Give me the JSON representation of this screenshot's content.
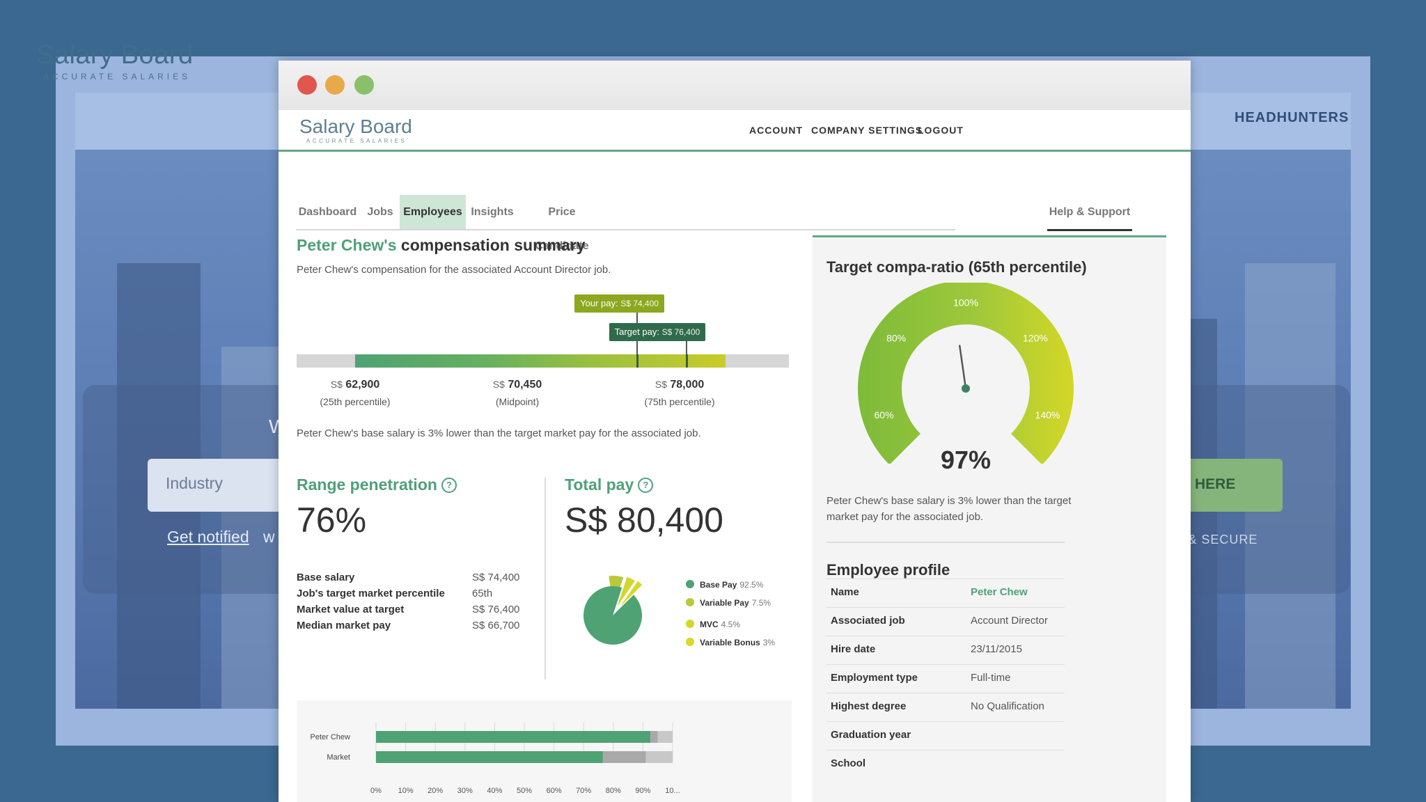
{
  "background_site": {
    "logo_word": "Salary Board",
    "logo_tagline": "ACCURATE SALARIES",
    "nav_right": "HEADHUNTERS",
    "industry_placeholder": "Industry",
    "cta_label": "HERE",
    "notified_link": "Get notified",
    "notified_rest": "w",
    "secure_text": "L & SECURE",
    "headline_fragment": "W"
  },
  "app": {
    "logo_word": "Salary Board",
    "logo_tagline": "ACCURATE SALARIES",
    "top_nav": [
      "ACCOUNT",
      "COMPANY SETTINGS",
      "LOGOUT"
    ],
    "tabs": [
      {
        "label": "Dashboard",
        "active": false
      },
      {
        "label": "Jobs",
        "active": false
      },
      {
        "label": "Employees",
        "active": true
      },
      {
        "label": "Insights",
        "active": false
      },
      {
        "label": "Price Candidate",
        "active": false
      }
    ],
    "help_tab": "Help & Support"
  },
  "compensation": {
    "title_name": "Peter Chew's",
    "title_rest": "compensation summary",
    "subtitle": "Peter Chew's compensation for the associated Account Director job.",
    "your_pay_label": "Your pay:",
    "your_pay_value": "S$ 74,400",
    "target_pay_label": "Target pay:",
    "target_pay_value": "S$ 76,400",
    "range_start": 62900,
    "range_end": 78000,
    "your_pay": 74400,
    "target_pay": 76400,
    "percentiles": [
      {
        "currency": "S$",
        "value": "62,900",
        "label": "(25th percentile)"
      },
      {
        "currency": "S$",
        "value": "70,450",
        "label": "(Midpoint)"
      },
      {
        "currency": "S$",
        "value": "78,000",
        "label": "(75th percentile)"
      }
    ],
    "note": "Peter Chew's base salary is 3% lower than the target market pay for the associated job."
  },
  "range_penetration": {
    "title": "Range penetration",
    "value": "76%"
  },
  "total_pay": {
    "title": "Total pay",
    "value": "S$ 80,400"
  },
  "stats": [
    {
      "label": "Base salary",
      "value": "S$ 74,400"
    },
    {
      "label": "Job's target market percentile",
      "value": "65th"
    },
    {
      "label": "Market value at target",
      "value": "S$ 76,400"
    },
    {
      "label": "Median market pay",
      "value": "S$ 66,700"
    }
  ],
  "help_icon_glyph": "?",
  "pay_mix": {
    "chart_data": {
      "type": "pie",
      "slices": [
        {
          "label": "Base Pay",
          "value": 92.5,
          "display": "92.5%",
          "color": "#4fa273"
        },
        {
          "label": "Variable Pay",
          "value": 7.5,
          "display": "7.5%",
          "color": "#b9c93a"
        },
        {
          "label": "MVC",
          "value": 4.5,
          "display": "4.5%",
          "color": "#d4d62e"
        },
        {
          "label": "Variable Bonus",
          "value": 3,
          "display": "3%",
          "color": "#d8d92a"
        }
      ]
    }
  },
  "bar_comparison": {
    "chart_data": {
      "type": "bar",
      "orientation": "horizontal",
      "stacked": true,
      "categories": [
        "Peter Chew",
        "Market"
      ],
      "series": [
        {
          "color": "#4fa273",
          "values": [
            92.5,
            76.5
          ]
        },
        {
          "color": "#a9a9a9",
          "values": [
            2.5,
            14.5
          ]
        },
        {
          "color": "#c8c8c8",
          "values": [
            5,
            9
          ]
        }
      ],
      "xticks": [
        "0%",
        "10%",
        "20%",
        "30%",
        "40%",
        "50%",
        "60%",
        "70%",
        "80%",
        "90%",
        "10..."
      ],
      "xlim": [
        0,
        100
      ]
    }
  },
  "gauge": {
    "title": "Target compa-ratio (65th percentile)",
    "value": "97%",
    "ratio": 97,
    "min": 50,
    "max": 150,
    "tick_labels": [
      "60%",
      "80%",
      "100%",
      "120%",
      "140%"
    ],
    "note": "Peter Chew's base salary is 3% lower than the target market pay for the associated job."
  },
  "profile": {
    "title": "Employee profile",
    "rows": [
      {
        "label": "Name",
        "value": "Peter Chew"
      },
      {
        "label": "Associated job",
        "value": "Account Director"
      },
      {
        "label": "Hire date",
        "value": "23/11/2015"
      },
      {
        "label": "Employment type",
        "value": "Full-time"
      },
      {
        "label": "Highest degree",
        "value": "No Qualification"
      },
      {
        "label": "Graduation year",
        "value": ""
      },
      {
        "label": "School",
        "value": ""
      }
    ]
  }
}
